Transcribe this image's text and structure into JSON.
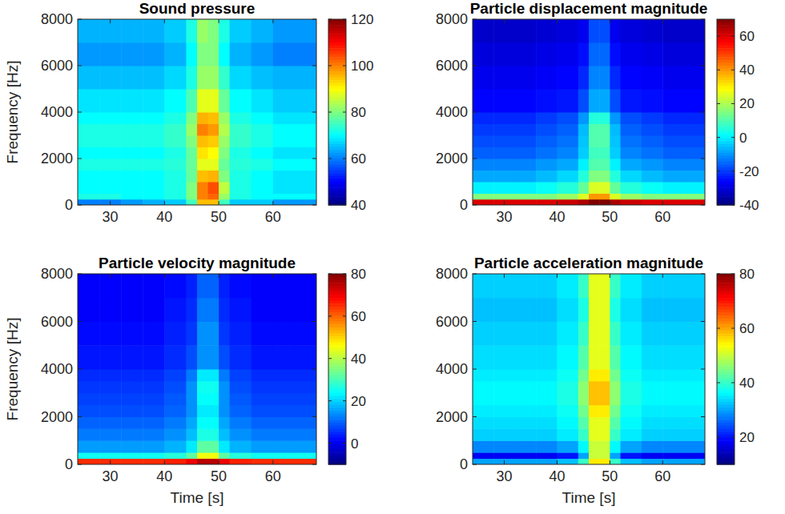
{
  "chart_data": [
    {
      "type": "heatmap",
      "title": "Sound pressure",
      "ylabel": "Frequency [Hz]",
      "x_edges": [
        24,
        28,
        32,
        36,
        40,
        44,
        46,
        48,
        50,
        52,
        56,
        60,
        64,
        68
      ],
      "y_edges": [
        0,
        250,
        500,
        1000,
        1500,
        2000,
        2500,
        3000,
        3500,
        4000,
        5000,
        6000,
        7000,
        8000
      ],
      "xlim": [
        24,
        68
      ],
      "ylim": [
        0,
        8000
      ],
      "xticks": [
        30,
        40,
        50,
        60
      ],
      "yticks": [
        0,
        2000,
        4000,
        6000,
        8000
      ],
      "color_range": [
        40,
        120
      ],
      "color_ticks": [
        40,
        60,
        80,
        100,
        120
      ],
      "cells": [
        [
          60,
          60,
          62,
          64,
          66,
          75,
          95,
          95,
          75,
          66,
          66,
          62,
          62
        ],
        [
          72,
          72,
          70,
          70,
          72,
          80,
          100,
          102,
          82,
          72,
          70,
          70,
          70
        ],
        [
          70,
          70,
          70,
          70,
          72,
          80,
          100,
          104,
          85,
          72,
          70,
          68,
          68
        ],
        [
          70,
          70,
          70,
          70,
          72,
          78,
          95,
          96,
          80,
          72,
          70,
          68,
          68
        ],
        [
          72,
          72,
          72,
          72,
          73,
          78,
          88,
          88,
          78,
          73,
          72,
          70,
          70
        ],
        [
          70,
          70,
          70,
          70,
          72,
          78,
          92,
          90,
          80,
          72,
          70,
          68,
          68
        ],
        [
          72,
          72,
          72,
          72,
          74,
          80,
          95,
          94,
          82,
          74,
          72,
          70,
          70
        ],
        [
          72,
          72,
          72,
          72,
          74,
          82,
          100,
          98,
          84,
          74,
          72,
          70,
          70
        ],
        [
          70,
          70,
          70,
          70,
          72,
          80,
          96,
          95,
          82,
          72,
          70,
          68,
          68
        ],
        [
          68,
          68,
          68,
          68,
          70,
          76,
          88,
          88,
          78,
          70,
          68,
          66,
          66
        ],
        [
          65,
          65,
          65,
          65,
          67,
          72,
          82,
          82,
          74,
          67,
          65,
          64,
          64
        ],
        [
          62,
          62,
          62,
          62,
          64,
          70,
          80,
          80,
          70,
          64,
          62,
          60,
          60
        ],
        [
          64,
          64,
          64,
          64,
          66,
          72,
          82,
          80,
          72,
          66,
          64,
          62,
          62
        ]
      ]
    },
    {
      "type": "heatmap",
      "title": "Particle displacement magnitude",
      "x_edges": [
        24,
        28,
        32,
        36,
        40,
        44,
        46,
        48,
        50,
        52,
        56,
        60,
        64,
        68
      ],
      "y_edges": [
        0,
        250,
        500,
        1000,
        1500,
        2000,
        2500,
        3000,
        3500,
        4000,
        5000,
        6000,
        7000,
        8000
      ],
      "xlim": [
        24,
        68
      ],
      "ylim": [
        0,
        8000
      ],
      "xticks": [
        30,
        40,
        50,
        60
      ],
      "yticks": [
        0,
        2000,
        4000,
        6000,
        8000
      ],
      "color_range": [
        -40,
        70
      ],
      "color_ticks": [
        -40,
        -20,
        0,
        20,
        40,
        60
      ],
      "cells": [
        [
          60,
          60,
          60,
          60,
          62,
          65,
          70,
          70,
          65,
          62,
          60,
          60,
          60
        ],
        [
          15,
          15,
          15,
          15,
          18,
          25,
          40,
          40,
          25,
          18,
          15,
          15,
          15
        ],
        [
          0,
          0,
          0,
          2,
          5,
          12,
          25,
          25,
          12,
          5,
          2,
          0,
          0
        ],
        [
          -8,
          -8,
          -8,
          -6,
          -3,
          5,
          15,
          15,
          5,
          -3,
          -6,
          -8,
          -8
        ],
        [
          -12,
          -12,
          -12,
          -10,
          -8,
          0,
          10,
          10,
          0,
          -8,
          -10,
          -12,
          -12
        ],
        [
          -16,
          -16,
          -16,
          -14,
          -12,
          -4,
          8,
          8,
          -4,
          -12,
          -14,
          -16,
          -16
        ],
        [
          -18,
          -18,
          -18,
          -16,
          -14,
          -5,
          10,
          10,
          -5,
          -14,
          -16,
          -18,
          -18
        ],
        [
          -20,
          -20,
          -20,
          -18,
          -16,
          -6,
          10,
          10,
          -6,
          -16,
          -18,
          -20,
          -20
        ],
        [
          -22,
          -22,
          -22,
          -20,
          -18,
          -10,
          5,
          5,
          -10,
          -18,
          -20,
          -22,
          -22
        ],
        [
          -26,
          -26,
          -26,
          -25,
          -24,
          -18,
          -8,
          -8,
          -18,
          -24,
          -25,
          -26,
          -26
        ],
        [
          -28,
          -28,
          -28,
          -27,
          -26,
          -22,
          -12,
          -12,
          -22,
          -26,
          -27,
          -28,
          -28
        ],
        [
          -30,
          -30,
          -30,
          -29,
          -28,
          -25,
          -15,
          -15,
          -25,
          -28,
          -29,
          -30,
          -30
        ],
        [
          -32,
          -32,
          -32,
          -31,
          -30,
          -28,
          -18,
          -18,
          -28,
          -30,
          -31,
          -32,
          -32
        ]
      ]
    },
    {
      "type": "heatmap",
      "title": "Particle velocity magnitude",
      "xlabel": "Time [s]",
      "ylabel": "Frequency [Hz]",
      "x_edges": [
        24,
        28,
        32,
        36,
        40,
        44,
        46,
        48,
        50,
        52,
        56,
        60,
        64,
        68
      ],
      "y_edges": [
        0,
        250,
        500,
        1000,
        1500,
        2000,
        2500,
        3000,
        3500,
        4000,
        5000,
        6000,
        7000,
        8000
      ],
      "xlim": [
        24,
        68
      ],
      "ylim": [
        0,
        8000
      ],
      "xticks": [
        30,
        40,
        50,
        60
      ],
      "yticks": [
        0,
        2000,
        4000,
        6000,
        8000
      ],
      "color_range": [
        -10,
        80
      ],
      "color_ticks": [
        0,
        20,
        40,
        60,
        80
      ],
      "cells": [
        [
          65,
          65,
          65,
          65,
          66,
          70,
          75,
          75,
          70,
          66,
          65,
          65,
          65
        ],
        [
          25,
          25,
          25,
          25,
          27,
          32,
          45,
          45,
          32,
          27,
          25,
          25,
          25
        ],
        [
          15,
          15,
          15,
          15,
          17,
          22,
          32,
          32,
          22,
          17,
          15,
          15,
          15
        ],
        [
          12,
          12,
          12,
          12,
          14,
          18,
          26,
          26,
          18,
          14,
          12,
          12,
          12
        ],
        [
          10,
          10,
          10,
          10,
          12,
          16,
          24,
          24,
          16,
          12,
          10,
          10,
          10
        ],
        [
          8,
          8,
          8,
          8,
          10,
          14,
          22,
          22,
          14,
          10,
          8,
          8,
          8
        ],
        [
          7,
          7,
          7,
          7,
          9,
          14,
          24,
          24,
          14,
          9,
          7,
          7,
          7
        ],
        [
          6,
          6,
          6,
          6,
          8,
          14,
          25,
          25,
          14,
          8,
          6,
          6,
          6
        ],
        [
          5,
          5,
          5,
          5,
          7,
          12,
          22,
          22,
          12,
          7,
          5,
          5,
          5
        ],
        [
          3,
          3,
          3,
          3,
          5,
          8,
          14,
          14,
          8,
          5,
          3,
          3,
          3
        ],
        [
          2,
          2,
          2,
          2,
          4,
          6,
          14,
          14,
          6,
          4,
          2,
          2,
          2
        ],
        [
          1,
          1,
          1,
          1,
          3,
          5,
          12,
          12,
          5,
          3,
          1,
          1,
          1
        ],
        [
          1,
          1,
          1,
          1,
          2,
          4,
          10,
          10,
          4,
          2,
          1,
          1,
          1
        ]
      ]
    },
    {
      "type": "heatmap",
      "title": "Particle acceleration magnitude",
      "xlabel": "Time [s]",
      "x_edges": [
        24,
        28,
        32,
        36,
        40,
        44,
        46,
        48,
        50,
        52,
        56,
        60,
        64,
        68
      ],
      "y_edges": [
        0,
        250,
        500,
        1000,
        1500,
        2000,
        2500,
        3000,
        3500,
        4000,
        5000,
        6000,
        7000,
        8000
      ],
      "xlim": [
        24,
        68
      ],
      "ylim": [
        0,
        8000
      ],
      "xticks": [
        30,
        40,
        50,
        60
      ],
      "yticks": [
        0,
        2000,
        4000,
        6000,
        8000
      ],
      "color_range": [
        10,
        80
      ],
      "color_ticks": [
        20,
        40,
        60,
        80
      ],
      "cells": [
        [
          30,
          30,
          30,
          30,
          32,
          40,
          55,
          55,
          40,
          32,
          30,
          30,
          30
        ],
        [
          18,
          18,
          18,
          18,
          20,
          30,
          50,
          50,
          30,
          20,
          18,
          18,
          18
        ],
        [
          28,
          28,
          28,
          28,
          30,
          36,
          50,
          50,
          36,
          30,
          28,
          28,
          28
        ],
        [
          33,
          33,
          33,
          33,
          35,
          40,
          52,
          52,
          40,
          35,
          33,
          33,
          33
        ],
        [
          34,
          34,
          34,
          34,
          36,
          42,
          52,
          52,
          42,
          36,
          34,
          34,
          34
        ],
        [
          35,
          35,
          35,
          35,
          37,
          44,
          55,
          55,
          44,
          37,
          35,
          35,
          35
        ],
        [
          36,
          36,
          36,
          36,
          38,
          46,
          58,
          58,
          46,
          38,
          36,
          36,
          36
        ],
        [
          36,
          36,
          36,
          36,
          38,
          46,
          58,
          58,
          46,
          38,
          36,
          36,
          36
        ],
        [
          35,
          35,
          35,
          35,
          37,
          44,
          55,
          55,
          44,
          37,
          35,
          35,
          35
        ],
        [
          34,
          34,
          34,
          34,
          36,
          42,
          52,
          52,
          42,
          36,
          34,
          34,
          34
        ],
        [
          33,
          33,
          33,
          33,
          35,
          40,
          52,
          52,
          40,
          35,
          33,
          33,
          33
        ],
        [
          32,
          32,
          32,
          32,
          34,
          38,
          52,
          52,
          38,
          34,
          32,
          32,
          32
        ],
        [
          33,
          33,
          33,
          33,
          35,
          40,
          52,
          52,
          40,
          35,
          33,
          33,
          33
        ]
      ]
    }
  ]
}
